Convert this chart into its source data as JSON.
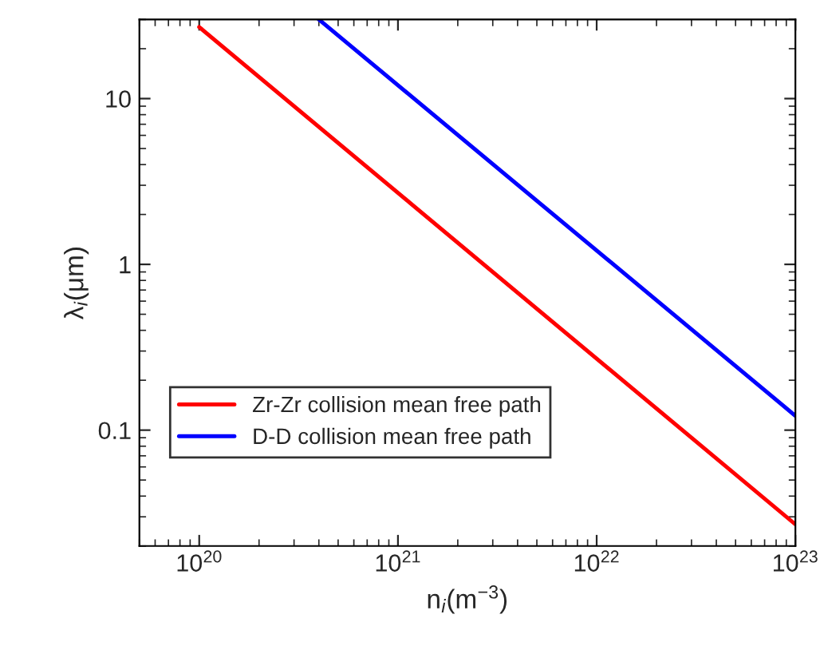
{
  "chart_data": {
    "type": "line",
    "xlabel": "n$_{i}$(m$^{−3}$)",
    "ylabel": "λ$_{i}$(μm)",
    "log": "xy",
    "xlim": [
      5e+19,
      1e+23
    ],
    "ylim": [
      0.02,
      30
    ],
    "xticks": [
      {
        "value": 1e+20,
        "label": "10$^{20}$"
      },
      {
        "value": 1e+21,
        "label": "10$^{21}$"
      },
      {
        "value": 1e+22,
        "label": "10$^{22}$"
      },
      {
        "value": 1e+23,
        "label": "10$^{23}$"
      }
    ],
    "yticks": [
      0.1,
      1,
      10
    ],
    "grid": false,
    "legend": "center left",
    "line_style": "solid",
    "marker": "none",
    "series": [
      {
        "name": "Zr-Zr collision mean free path",
        "color": "#ff0000",
        "x": [
          1e+20,
          1e+23
        ],
        "values": [
          27,
          0.027
        ]
      },
      {
        "name": "D-D collision mean free path",
        "color": "#0000ff",
        "x": [
          4e+20,
          1e+23
        ],
        "values": [
          30,
          0.122
        ]
      }
    ]
  }
}
